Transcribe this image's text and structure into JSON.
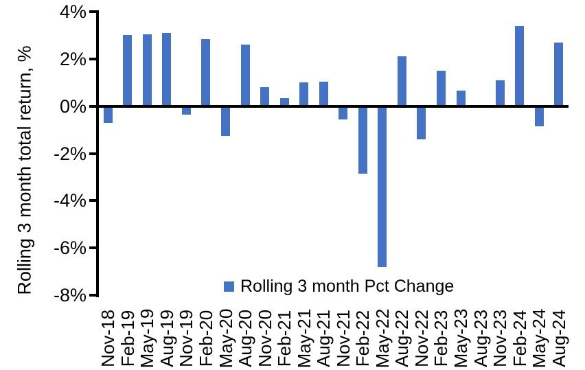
{
  "chart_data": {
    "type": "bar",
    "title": "",
    "ylabel": "Rolling 3 month total return, %",
    "xlabel": "",
    "ylim": [
      -8,
      4
    ],
    "grid": false,
    "bar_color": "#4472C4",
    "axis_color": "#000000",
    "background_color": "#FFFFFF",
    "legend": {
      "label": "Rolling 3 month Pct Change",
      "position": "bottom-center"
    },
    "yticks": [
      {
        "value": 4,
        "label": "4%"
      },
      {
        "value": 2,
        "label": "2%"
      },
      {
        "value": 0,
        "label": "0%"
      },
      {
        "value": -2,
        "label": "-2%"
      },
      {
        "value": -4,
        "label": "-4%"
      },
      {
        "value": -6,
        "label": "-6%"
      },
      {
        "value": -8,
        "label": "-8%"
      }
    ],
    "categories": [
      "Nov-18",
      "Feb-19",
      "May-19",
      "Aug-19",
      "Nov-19",
      "Feb-20",
      "May-20",
      "Aug-20",
      "Nov-20",
      "Feb-21",
      "May-21",
      "Aug-21",
      "Nov-21",
      "Feb-22",
      "May-22",
      "Aug-22",
      "Nov-22",
      "Feb-23",
      "May-23",
      "Aug-23",
      "Nov-23",
      "Feb-24",
      "May-24",
      "Aug-24"
    ],
    "values": [
      -0.7,
      3.0,
      3.05,
      3.1,
      -0.35,
      2.85,
      -1.25,
      2.6,
      0.8,
      0.35,
      1.0,
      1.05,
      -0.55,
      -2.85,
      -6.8,
      2.1,
      -1.4,
      1.5,
      0.65,
      0,
      1.1,
      3.4,
      -0.85,
      2.7
    ]
  }
}
